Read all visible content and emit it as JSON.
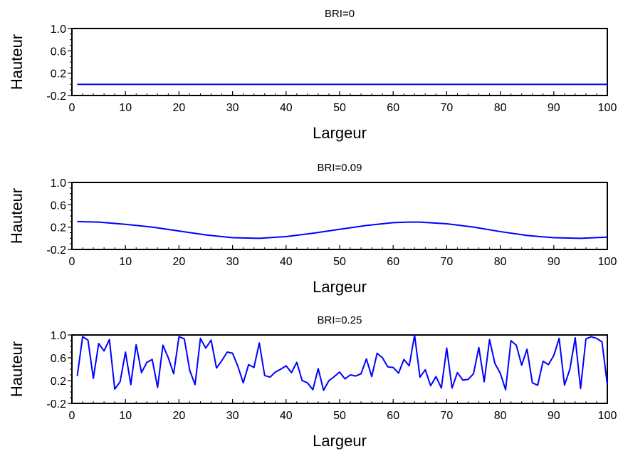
{
  "colors": {
    "line": "#0000ff",
    "axis": "#000000",
    "background": "#ffffff"
  },
  "chart_data": [
    {
      "type": "line",
      "title": "BRI=0",
      "xlabel": "Largeur",
      "ylabel": "Hauteur",
      "xlim": [
        0,
        100
      ],
      "ylim": [
        -0.2,
        1.0
      ],
      "xticks": [
        0,
        10,
        20,
        30,
        40,
        50,
        60,
        70,
        80,
        90,
        100
      ],
      "yticks": [
        -0.2,
        0.2,
        0.6,
        1.0
      ],
      "ytick_labels": [
        "-0.2",
        "0.2",
        "0.6",
        "1.0"
      ],
      "grid": false,
      "series": [
        {
          "x": [
            1,
            10,
            20,
            30,
            40,
            50,
            60,
            70,
            80,
            90,
            100
          ],
          "y": [
            0,
            0,
            0,
            0,
            0,
            0,
            0,
            0,
            0,
            0,
            0
          ]
        }
      ]
    },
    {
      "type": "line",
      "title": "BRI=0.09",
      "xlabel": "Largeur",
      "ylabel": "Hauteur",
      "xlim": [
        0,
        100
      ],
      "ylim": [
        -0.2,
        1.0
      ],
      "xticks": [
        0,
        10,
        20,
        30,
        40,
        50,
        60,
        70,
        80,
        90,
        100
      ],
      "yticks": [
        -0.2,
        0.2,
        0.6,
        1.0
      ],
      "ytick_labels": [
        "-0.2",
        "0.2",
        "0.6",
        "1.0"
      ],
      "grid": false,
      "series": [
        {
          "x": [
            1,
            5,
            10,
            15,
            20,
            25,
            30,
            35,
            40,
            45,
            50,
            55,
            60,
            63,
            65,
            70,
            75,
            80,
            85,
            90,
            95,
            100
          ],
          "y": [
            0.3,
            0.29,
            0.25,
            0.2,
            0.13,
            0.06,
            0.01,
            0.0,
            0.03,
            0.09,
            0.16,
            0.23,
            0.28,
            0.29,
            0.29,
            0.26,
            0.2,
            0.12,
            0.05,
            0.01,
            0.0,
            0.02
          ]
        }
      ]
    },
    {
      "type": "line",
      "title": "BRI=0.25",
      "xlabel": "Largeur",
      "ylabel": "Hauteur",
      "xlim": [
        0,
        100
      ],
      "ylim": [
        -0.2,
        1.0
      ],
      "xticks": [
        0,
        10,
        20,
        30,
        40,
        50,
        60,
        70,
        80,
        90,
        100
      ],
      "yticks": [
        -0.2,
        0.2,
        0.6,
        1.0
      ],
      "ytick_labels": [
        "-0.2",
        "0.2",
        "0.6",
        "1.0"
      ],
      "grid": false,
      "series": [
        {
          "x": [
            1,
            2,
            3,
            4,
            5,
            6,
            7,
            8,
            9,
            10,
            11,
            12,
            13,
            14,
            15,
            16,
            17,
            18,
            19,
            20,
            21,
            22,
            23,
            24,
            25,
            26,
            27,
            28,
            29,
            30,
            31,
            32,
            33,
            34,
            35,
            36,
            37,
            38,
            39,
            40,
            41,
            42,
            43,
            44,
            45,
            46,
            47,
            48,
            49,
            50,
            51,
            52,
            53,
            54,
            55,
            56,
            57,
            58,
            59,
            60,
            61,
            62,
            63,
            64,
            65,
            66,
            67,
            68,
            69,
            70,
            71,
            72,
            73,
            74,
            75,
            76,
            77,
            78,
            79,
            80,
            81,
            82,
            83,
            84,
            85,
            86,
            87,
            88,
            89,
            90,
            91,
            92,
            93,
            94,
            95,
            96,
            97,
            98,
            99,
            100
          ],
          "y": [
            0.28,
            0.97,
            0.91,
            0.24,
            0.85,
            0.72,
            0.92,
            0.05,
            0.18,
            0.7,
            0.13,
            0.83,
            0.34,
            0.52,
            0.57,
            0.08,
            0.82,
            0.6,
            0.32,
            0.97,
            0.93,
            0.38,
            0.13,
            0.94,
            0.77,
            0.91,
            0.42,
            0.55,
            0.7,
            0.68,
            0.45,
            0.16,
            0.48,
            0.43,
            0.86,
            0.29,
            0.26,
            0.35,
            0.4,
            0.46,
            0.34,
            0.52,
            0.2,
            0.16,
            0.04,
            0.41,
            0.03,
            0.2,
            0.27,
            0.35,
            0.23,
            0.3,
            0.28,
            0.32,
            0.58,
            0.27,
            0.68,
            0.6,
            0.44,
            0.43,
            0.33,
            0.57,
            0.46,
            1.0,
            0.26,
            0.39,
            0.11,
            0.27,
            0.07,
            0.77,
            0.07,
            0.34,
            0.21,
            0.22,
            0.32,
            0.78,
            0.18,
            0.92,
            0.5,
            0.33,
            0.04,
            0.9,
            0.82,
            0.47,
            0.75,
            0.16,
            0.12,
            0.54,
            0.48,
            0.64,
            0.94,
            0.12,
            0.4,
            0.95,
            0.06,
            0.93,
            0.97,
            0.94,
            0.88,
            0.13
          ]
        }
      ]
    }
  ]
}
